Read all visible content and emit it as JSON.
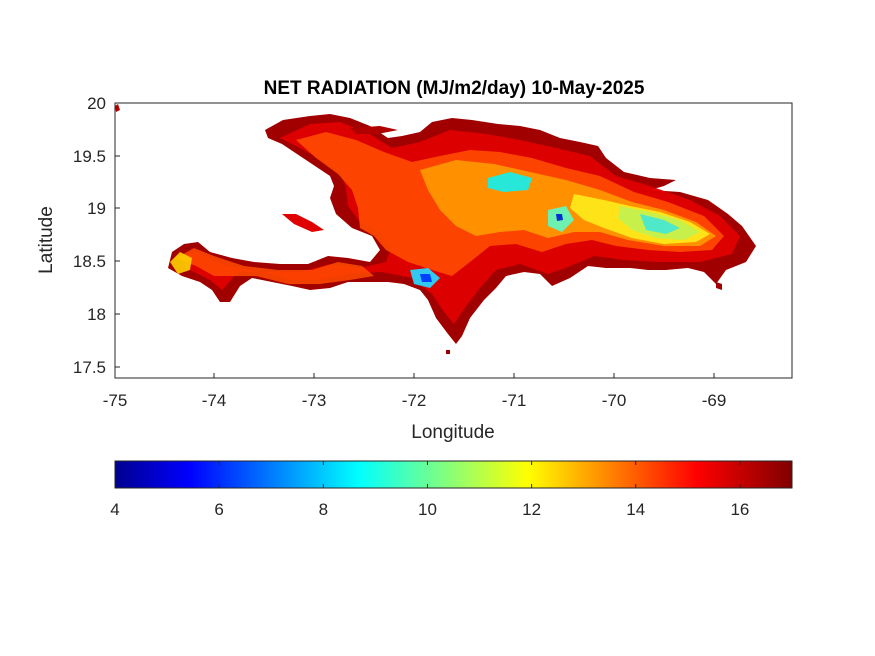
{
  "title": "NET RADIATION (MJ/m2/day) 10-May-2025",
  "map": {
    "type": "heatmap",
    "region": "Hispaniola",
    "xlabel": "Longitude",
    "ylabel": "Latitude",
    "xlim": [
      -75,
      -68.2
    ],
    "ylim": [
      17.4,
      20
    ],
    "xticks": [
      "-75",
      "-74",
      "-73",
      "-72",
      "-71",
      "-70",
      "-69"
    ],
    "yticks": [
      "20",
      "19.5",
      "19",
      "18.5",
      "18",
      "17.5"
    ],
    "colormap": "jet",
    "colors": {
      "dark_red": "#800000",
      "red": "#d40000",
      "orange_red": "#ff4500",
      "orange": "#ff9a00",
      "yellow": "#ffe81a",
      "yellow_green": "#c8f04a",
      "cyan": "#27e8d8",
      "blue": "#0040ff"
    }
  },
  "colorbar": {
    "min": 4,
    "max": 17,
    "ticks": [
      "4",
      "6",
      "8",
      "10",
      "12",
      "14",
      "16"
    ]
  }
}
